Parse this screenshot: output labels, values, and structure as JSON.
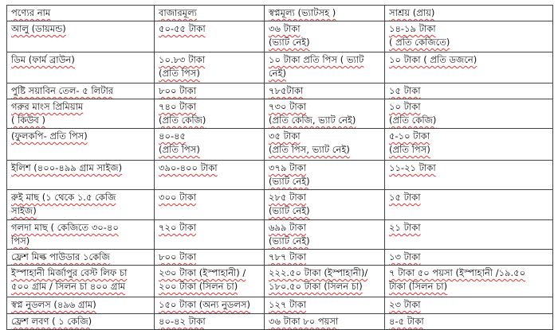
{
  "table": {
    "header": [
      "পণ্যের নাম",
      "বাজারমূল্য",
      "স্বপ্নমূল্য (ভ্যাটসহ )",
      "সাশ্রয় (প্রায়)"
    ],
    "rows": [
      [
        [
          "আলু (ডায়মন্ড)"
        ],
        [
          "৫০-৫৫ টাকা"
        ],
        [
          "৩৬ টাকা",
          "(ভ্যাট নেই)"
        ],
        [
          "১৪-১৯ টাকা",
          "( প্রতি কেজিতে)"
        ]
      ],
      [
        [
          "ডিম (ফার্ম ব্রাউন)"
        ],
        [
          "১০.৮৩ টাকা",
          "(প্রতি পিস)"
        ],
        [
          "১০ টাকা প্রতি পিস ( ভ্যাট",
          "নেই)"
        ],
        [
          "১০ টাকা ( প্রতি ডজনে)"
        ]
      ],
      [
        [
          "পুষ্টি সয়াবিন তেল- ৫ লিটার"
        ],
        [
          "৮০০ টাকা"
        ],
        [
          "৭৮৫টাকা"
        ],
        [
          " ১৫ টাকা"
        ]
      ],
      [
        [
          "গরুর মাংস প্রিমিয়াম",
          "( কিউব )"
        ],
        [
          " ৭৪০ টাকা",
          " (প্রতি কেজি)"
        ],
        [
          "৭৩০ টাকা",
          "(প্রতি কেজি, ভ্যাট নেই)"
        ],
        [
          "১০ টাকা",
          "(প্রতি কেজি)"
        ]
      ],
      [
        [
          " (ফুলকপি- প্রতি পিস)"
        ],
        [
          "৪০-৪৫",
          "(প্রতি পিস)"
        ],
        [
          "৩৫ টাকা",
          "(প্রতি পিস, ভ্যাট নেই)"
        ],
        [
          "৫-১০ টাকা",
          "(প্রতি পিস)"
        ]
      ],
      [
        [
          "ইলিশ (৪০০-৪৯৯ গ্রাম সাইজ)"
        ],
        [
          "৩৯০-৪০০ টাকা"
        ],
        [
          "৩৭৯ টাকা",
          "(ভ্যাট নেই)"
        ],
        [
          "১১-২১ টাকা"
        ]
      ],
      [
        [
          "রুই মাছ (১ থেকে ১.৫ কেজি",
          "সাইজ)"
        ],
        [
          "৩০০ টাকা"
        ],
        [
          "২৮৫ টাকা",
          "(ভ্যাট নেই)"
        ],
        [
          "১৫ টাকা"
        ]
      ],
      [
        [
          "গলদা মাছ ( কেজিতে ৩০-৪০",
          "পিস)"
        ],
        [
          "৭২০ টাকা"
        ],
        [
          "৬৯৯ টাকা",
          "(ভ্যাট নেই)"
        ],
        [
          "২১ টাকা"
        ]
      ],
      [
        [
          "ফ্রেশ মিল্ক পাউডার ১কেজি"
        ],
        [
          "৮০০ টাকা"
        ],
        [
          "৭৮৭ টাকা"
        ],
        [
          "১৩ টাকা"
        ]
      ],
      [
        [
          "ইস্পাহানী মির্জাপুর বেস্ট লিফ চা",
          "৫০০ গ্রাম / সিলন চা ৪০০ গ্রাম"
        ],
        [
          "২৩০ টাকা (ইস্পাহানী) /",
          "২০০ টাকা (সিলন চা)"
        ],
        [
          "২২২.৫০ টাকা (ইস্পাহানী)/",
          "১৮০.৫০ টাকা (সিলন চা)"
        ],
        [
          "৭ টাকা ৫০ পয়সা (ইস্পাহানী /১৯.৫০",
          "টাকা (সিলন চা)"
        ]
      ],
      [
        [
          "স্বপ্ন নুডলস (৪৯৬ গ্রাম)"
        ],
        [
          "১৫০ টাকা (অন্য নুডলস)"
        ],
        [
          "১২৭ টাকা"
        ],
        [
          "২৩ টাকা"
        ]
      ],
      [
        [
          "ফ্রেশ লবণ ( ১ কেজি)"
        ],
        [
          "৪০-৪২ টাকা"
        ],
        [
          "৩৬ টাকা ৮০ পয়সা"
        ],
        [
          "৪-৫ টাকা"
        ]
      ]
    ]
  }
}
